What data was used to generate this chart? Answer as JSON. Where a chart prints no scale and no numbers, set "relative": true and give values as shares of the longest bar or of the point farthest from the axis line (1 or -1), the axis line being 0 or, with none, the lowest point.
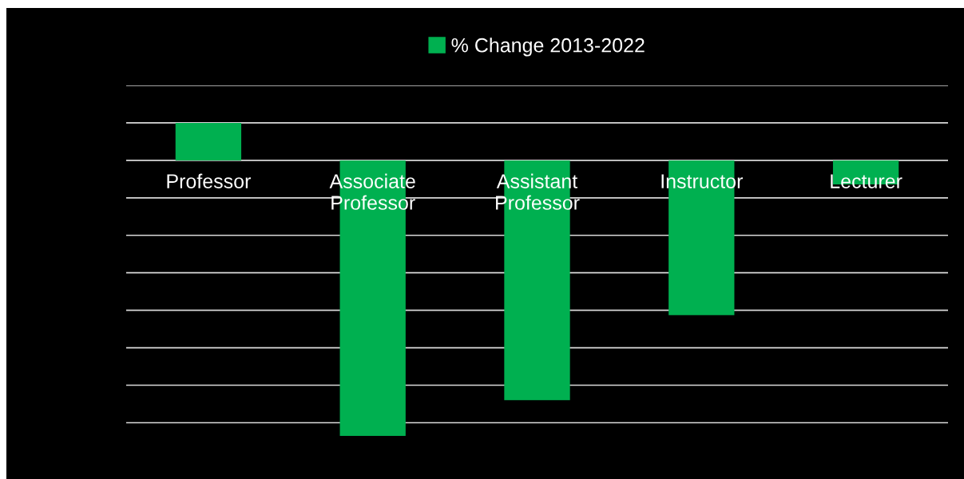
{
  "chart_data": {
    "type": "bar",
    "relative": true,
    "categories": [
      "Professor",
      "Associate Professor",
      "Assistant Professor",
      "Instructor",
      "Lecturer"
    ],
    "series": [
      {
        "name": "% Change 2013-2022",
        "color": "#00b050",
        "values": [
          0.136,
          -1,
          -0.87,
          -0.562,
          -0.087
        ]
      }
    ],
    "grid": "y",
    "legend": "top",
    "tick_labels": false
  }
}
